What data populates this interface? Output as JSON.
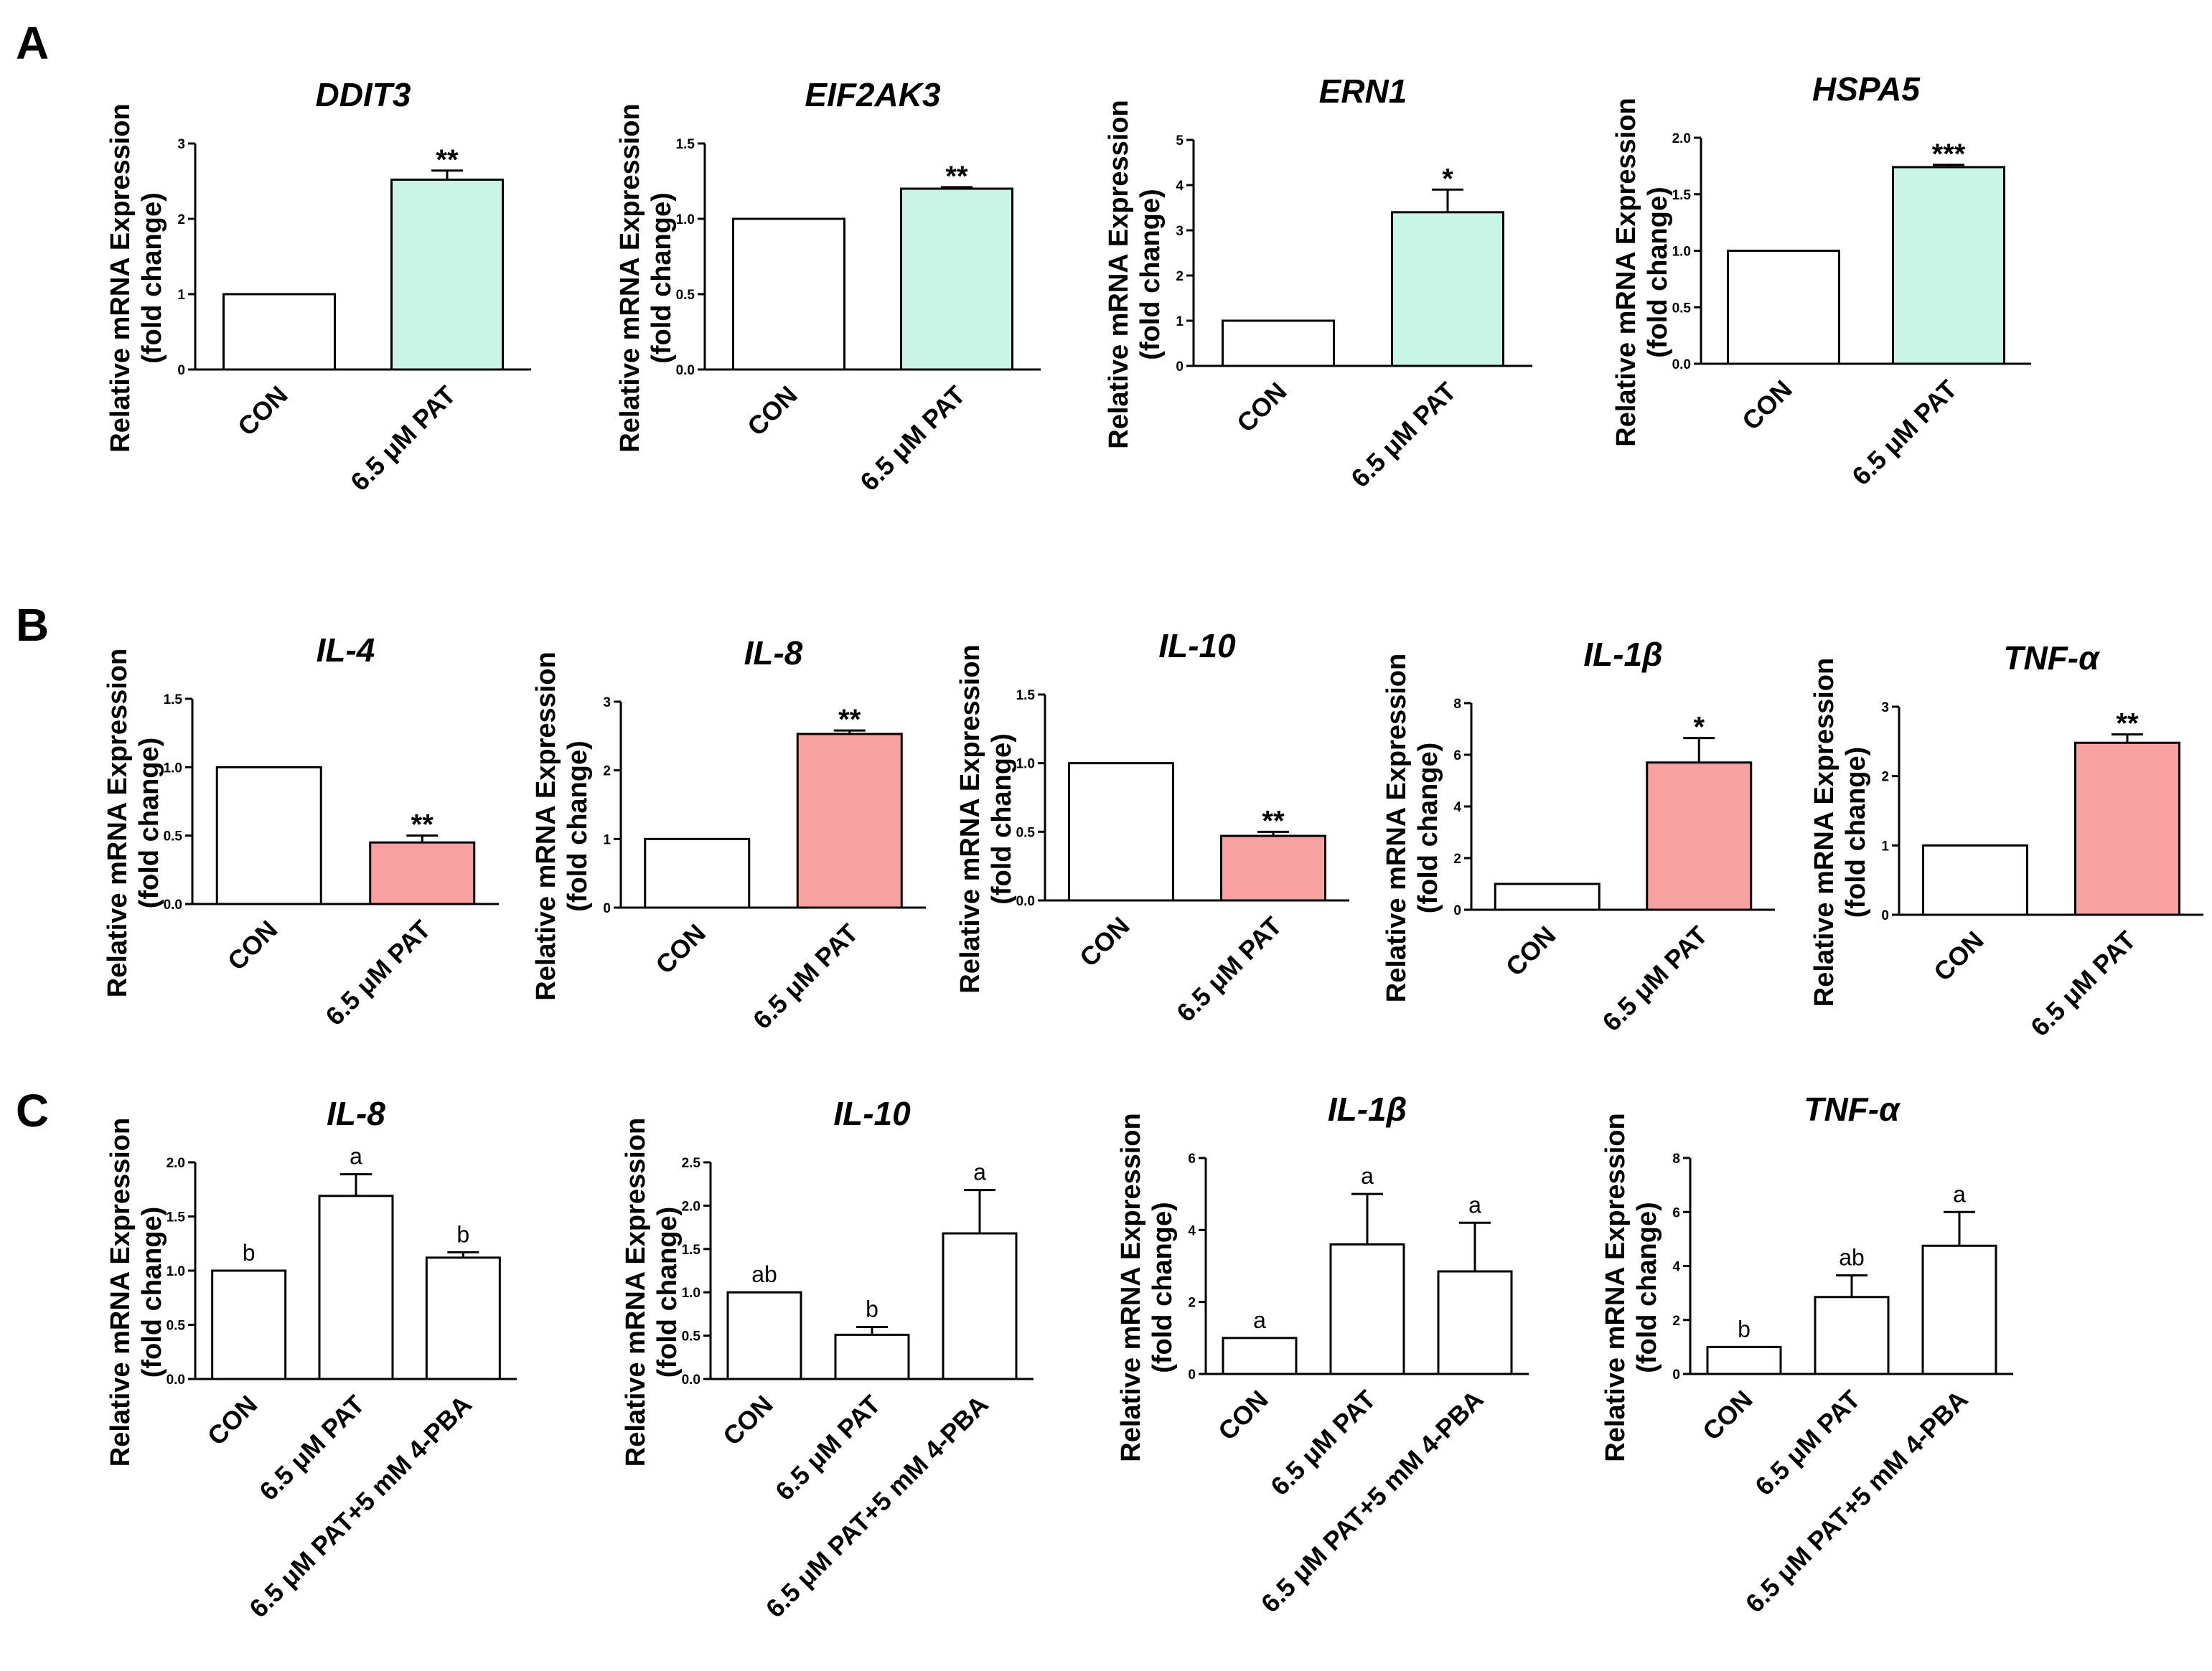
{
  "panel_labels": [
    "A",
    "B",
    "C"
  ],
  "y_axis_label_line1": "Relative mRNA Expression",
  "y_axis_label_line2": "(fold change)",
  "colors": {
    "green": "#c9f5e6",
    "pink": "#f9a0a0",
    "white": "#ffffff",
    "stroke": "#000000"
  },
  "chart_data": [
    {
      "type": "bar",
      "panel": "A",
      "title": "DDIT3",
      "categories": [
        "CON",
        "6.5 μM PAT"
      ],
      "values": [
        1.0,
        2.52
      ],
      "errors": [
        0,
        0.12
      ],
      "annotations": [
        "",
        "**"
      ],
      "fills": [
        "white",
        "green"
      ],
      "ylim": [
        0,
        3
      ],
      "yticks": [
        "0",
        "1",
        "2",
        "3"
      ],
      "xlabel": "",
      "ylabel": "Relative mRNA Expression (fold change)"
    },
    {
      "type": "bar",
      "panel": "A",
      "title": "EIF2AK3",
      "categories": [
        "CON",
        "6.5 μM PAT"
      ],
      "values": [
        1.0,
        1.2
      ],
      "errors": [
        0,
        0.01
      ],
      "annotations": [
        "",
        "**"
      ],
      "fills": [
        "white",
        "green"
      ],
      "ylim": [
        0,
        1.5
      ],
      "yticks": [
        "0.0",
        "0.5",
        "1.0",
        "1.5"
      ],
      "xlabel": "",
      "ylabel": "Relative mRNA Expression (fold change)"
    },
    {
      "type": "bar",
      "panel": "A",
      "title": "ERN1",
      "categories": [
        "CON",
        "6.5 μM PAT"
      ],
      "values": [
        1.0,
        3.4
      ],
      "errors": [
        0,
        0.5
      ],
      "annotations": [
        "",
        "*"
      ],
      "fills": [
        "white",
        "green"
      ],
      "ylim": [
        0,
        5
      ],
      "yticks": [
        "0",
        "1",
        "2",
        "3",
        "4",
        "5"
      ],
      "xlabel": "",
      "ylabel": "Relative mRNA Expression (fold change)"
    },
    {
      "type": "bar",
      "panel": "A",
      "title": "HSPA5",
      "categories": [
        "CON",
        "6.5 μM PAT"
      ],
      "values": [
        1.0,
        1.74
      ],
      "errors": [
        0,
        0.02
      ],
      "annotations": [
        "",
        "***"
      ],
      "fills": [
        "white",
        "green"
      ],
      "ylim": [
        0,
        2.0
      ],
      "yticks": [
        "0.0",
        "0.5",
        "1.0",
        "1.5",
        "2.0"
      ],
      "xlabel": "",
      "ylabel": "Relative mRNA Expression (fold change)"
    },
    {
      "type": "bar",
      "panel": "B",
      "title": "IL-4",
      "categories": [
        "CON",
        "6.5 μM PAT"
      ],
      "values": [
        1.0,
        0.45
      ],
      "errors": [
        0,
        0.05
      ],
      "annotations": [
        "",
        "**"
      ],
      "fills": [
        "white",
        "pink"
      ],
      "ylim": [
        0,
        1.5
      ],
      "yticks": [
        "0.0",
        "0.5",
        "1.0",
        "1.5"
      ],
      "xlabel": "",
      "ylabel": "Relative mRNA Expression (fold change)"
    },
    {
      "type": "bar",
      "panel": "B",
      "title": "IL-8",
      "categories": [
        "CON",
        "6.5 μM PAT"
      ],
      "values": [
        1.0,
        2.53
      ],
      "errors": [
        0,
        0.05
      ],
      "annotations": [
        "",
        "**"
      ],
      "fills": [
        "white",
        "pink"
      ],
      "ylim": [
        0,
        3
      ],
      "yticks": [
        "0",
        "1",
        "2",
        "3"
      ],
      "xlabel": "",
      "ylabel": "Relative mRNA Expression (fold change)"
    },
    {
      "type": "bar",
      "panel": "B",
      "title": "IL-10",
      "categories": [
        "CON",
        "6.5 μM PAT"
      ],
      "values": [
        1.0,
        0.47
      ],
      "errors": [
        0,
        0.03
      ],
      "annotations": [
        "",
        "**"
      ],
      "fills": [
        "white",
        "pink"
      ],
      "ylim": [
        0,
        1.5
      ],
      "yticks": [
        "0.0",
        "0.5",
        "1.0",
        "1.5"
      ],
      "xlabel": "",
      "ylabel": "Relative mRNA Expression (fold change)"
    },
    {
      "type": "bar",
      "panel": "B",
      "title": "IL-1β",
      "categories": [
        "CON",
        "6.5 μM PAT"
      ],
      "values": [
        1.0,
        5.7
      ],
      "errors": [
        0,
        0.95
      ],
      "annotations": [
        "",
        "*"
      ],
      "fills": [
        "white",
        "pink"
      ],
      "ylim": [
        0,
        8
      ],
      "yticks": [
        "0",
        "2",
        "4",
        "6",
        "8"
      ],
      "xlabel": "",
      "ylabel": "Relative mRNA Expression (fold change)"
    },
    {
      "type": "bar",
      "panel": "B",
      "title": "TNF-α",
      "categories": [
        "CON",
        "6.5 μM PAT"
      ],
      "values": [
        1.0,
        2.48
      ],
      "errors": [
        0,
        0.12
      ],
      "annotations": [
        "",
        "**"
      ],
      "fills": [
        "white",
        "pink"
      ],
      "ylim": [
        0,
        3
      ],
      "yticks": [
        "0",
        "1",
        "2",
        "3"
      ],
      "xlabel": "",
      "ylabel": "Relative mRNA Expression (fold change)"
    },
    {
      "type": "bar",
      "panel": "C",
      "title": "IL-8",
      "categories": [
        "CON",
        "6.5 μM PAT",
        "6.5 μM PAT+5 mM 4-PBA"
      ],
      "values": [
        1.0,
        1.69,
        1.12
      ],
      "errors": [
        0,
        0.2,
        0.05
      ],
      "annotations": [
        "b",
        "a",
        "b"
      ],
      "fills": [
        "white",
        "white",
        "white"
      ],
      "ylim": [
        0,
        2.0
      ],
      "yticks": [
        "0.0",
        "0.5",
        "1.0",
        "1.5",
        "2.0"
      ],
      "xlabel": "",
      "ylabel": "Relative mRNA Expression (fold change)"
    },
    {
      "type": "bar",
      "panel": "C",
      "title": "IL-10",
      "categories": [
        "CON",
        "6.5 μM PAT",
        "6.5 μM PAT+5 mM 4-PBA"
      ],
      "values": [
        1.0,
        0.51,
        1.68
      ],
      "errors": [
        0,
        0.09,
        0.5
      ],
      "annotations": [
        "ab",
        "b",
        "a"
      ],
      "fills": [
        "white",
        "white",
        "white"
      ],
      "ylim": [
        0,
        2.5
      ],
      "yticks": [
        "0.0",
        "0.5",
        "1.0",
        "1.5",
        "2.0",
        "2.5"
      ],
      "xlabel": "",
      "ylabel": "Relative mRNA Expression (fold change)"
    },
    {
      "type": "bar",
      "panel": "C",
      "title": "IL-1β",
      "categories": [
        "CON",
        "6.5 μM PAT",
        "6.5 μM PAT+5 mM 4-PBA"
      ],
      "values": [
        1.0,
        3.6,
        2.85
      ],
      "errors": [
        0,
        1.4,
        1.35
      ],
      "annotations": [
        "a",
        "a",
        "a"
      ],
      "fills": [
        "white",
        "white",
        "white"
      ],
      "ylim": [
        0,
        6
      ],
      "yticks": [
        "0",
        "2",
        "4",
        "6"
      ],
      "xlabel": "",
      "ylabel": "Relative mRNA Expression (fold change)"
    },
    {
      "type": "bar",
      "panel": "C",
      "title": "TNF-α",
      "categories": [
        "CON",
        "6.5 μM PAT",
        "6.5 μM PAT+5 mM 4-PBA"
      ],
      "values": [
        1.0,
        2.85,
        4.75
      ],
      "errors": [
        0,
        0.8,
        1.25
      ],
      "annotations": [
        "b",
        "ab",
        "a"
      ],
      "fills": [
        "white",
        "white",
        "white"
      ],
      "ylim": [
        0,
        8
      ],
      "yticks": [
        "0",
        "2",
        "4",
        "6",
        "8"
      ],
      "xlabel": "",
      "ylabel": "Relative mRNA Expression (fold change)"
    }
  ]
}
